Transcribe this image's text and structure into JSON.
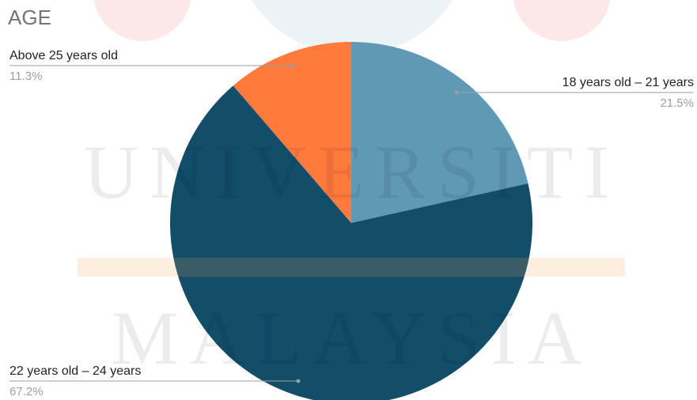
{
  "chart_data": {
    "type": "pie",
    "title": "AGE",
    "categories": [
      "18 years old – 21 years",
      "22 years old – 24 years",
      "Above 25 years old"
    ],
    "values": [
      21.5,
      67.2,
      11.3
    ],
    "value_labels": [
      "21.5%",
      "67.2%",
      "11.3%"
    ],
    "colors": [
      "#5f99b5",
      "#124e69",
      "#ff7a3c"
    ]
  },
  "watermark": [
    "UNIVERSITI",
    "MALAYSIA"
  ]
}
